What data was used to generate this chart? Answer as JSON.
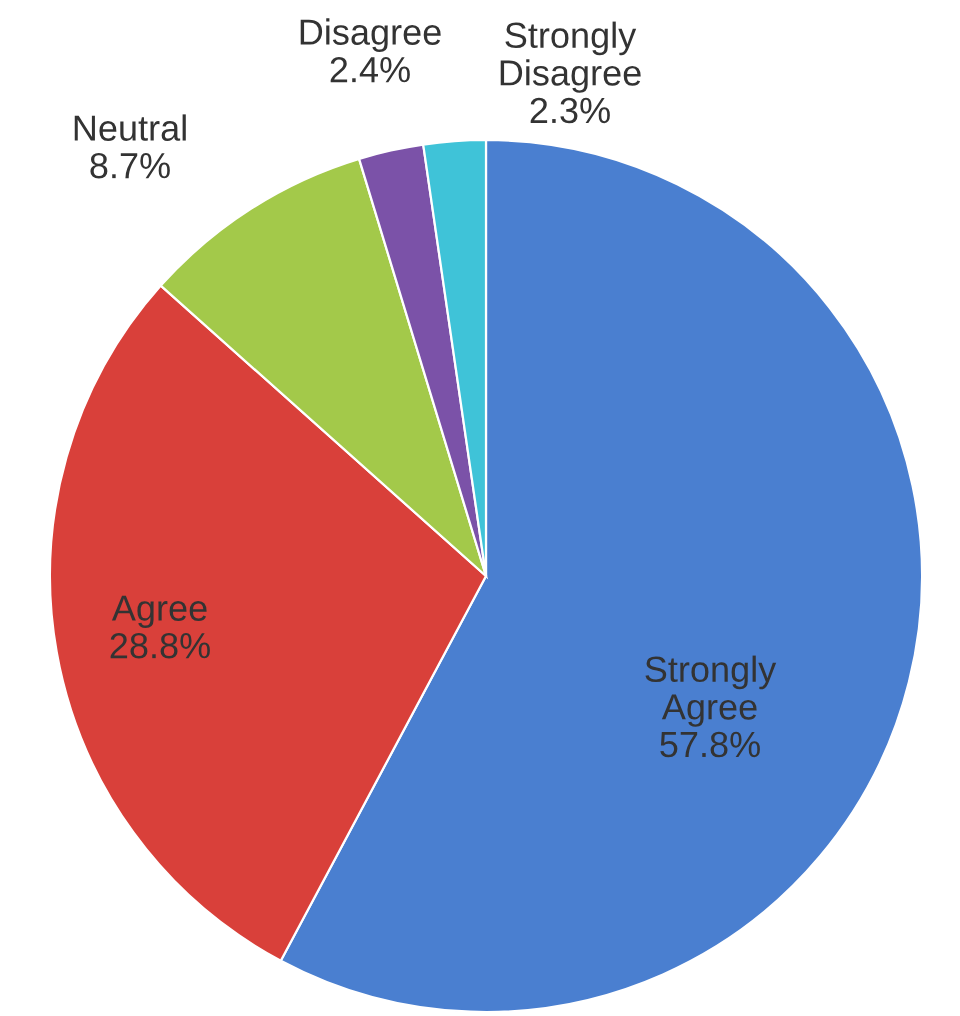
{
  "chart_data": {
    "type": "pie",
    "categories": [
      "Strongly Agree",
      "Agree",
      "Neutral",
      "Disagree",
      "Strongly Disagree"
    ],
    "values": [
      57.8,
      28.8,
      8.7,
      2.4,
      2.3
    ],
    "value_labels": [
      "57.8%",
      "28.8%",
      "8.7%",
      "2.4%",
      "2.3%"
    ],
    "colors": [
      "#4a7fd0",
      "#d9403a",
      "#a3c94a",
      "#7b52a8",
      "#3fc3d8"
    ]
  }
}
